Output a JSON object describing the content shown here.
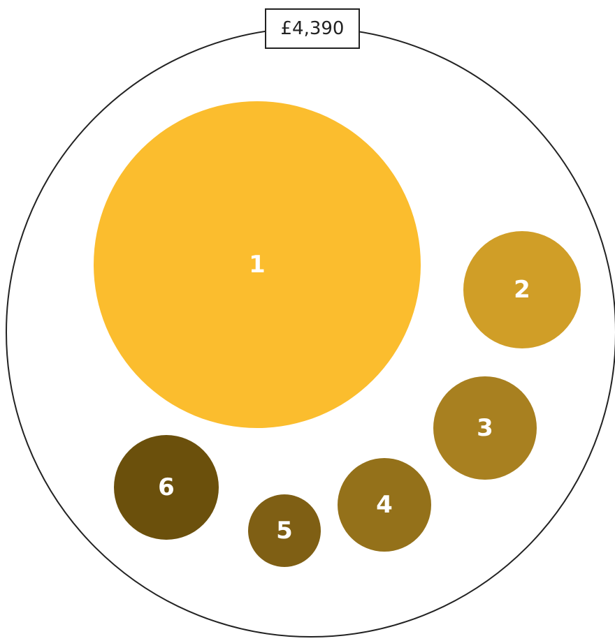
{
  "total": {
    "label": "£4,390"
  },
  "nodes": [
    {
      "label": "1",
      "color": "#fbbd2e"
    },
    {
      "label": "2",
      "color": "#d09e27"
    },
    {
      "label": "3",
      "color": "#a88020"
    },
    {
      "label": "4",
      "color": "#94711a"
    },
    {
      "label": "5",
      "color": "#7f5f14"
    },
    {
      "label": "6",
      "color": "#6b500c"
    }
  ]
}
